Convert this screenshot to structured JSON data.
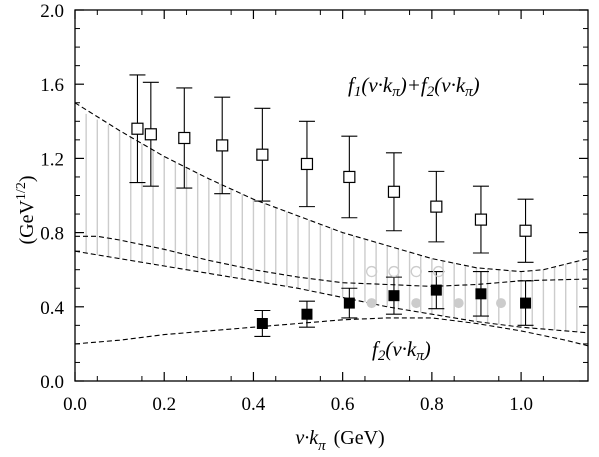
{
  "chart_data": {
    "type": "scatter",
    "xlabel": {
      "main": "v·k",
      "sub": "π",
      "unit": "(GeV)"
    },
    "ylabel": {
      "unit": "(GeV",
      "sup": "1/2",
      "close": ")"
    },
    "xlim": [
      0.0,
      1.15
    ],
    "ylim": [
      0.0,
      2.0
    ],
    "x_ticks": [
      "0.0",
      "0.2",
      "0.4",
      "0.6",
      "0.8",
      "1.0"
    ],
    "x_tick_values": [
      0.0,
      0.2,
      0.4,
      0.6,
      0.8,
      1.0
    ],
    "y_ticks": [
      "0.0",
      "0.4",
      "0.8",
      "1.2",
      "1.6",
      "2.0"
    ],
    "y_tick_values": [
      0.0,
      0.4,
      0.8,
      1.2,
      1.6,
      2.0
    ],
    "grid": false,
    "annotations": [
      {
        "text": "f1(v·kπ)+f2(v·kπ)",
        "near": "upper right"
      },
      {
        "text": "f2(v·kπ)",
        "near": "lower right"
      }
    ],
    "series": [
      {
        "marker": "open-square",
        "color": "#000000",
        "points": [
          {
            "x": 0.14,
            "y": 1.36,
            "err": 0.29
          },
          {
            "x": 0.17,
            "y": 1.33,
            "err": 0.28
          },
          {
            "x": 0.245,
            "y": 1.31,
            "err": 0.27
          },
          {
            "x": 0.33,
            "y": 1.27,
            "err": 0.26
          },
          {
            "x": 0.42,
            "y": 1.22,
            "err": 0.25
          },
          {
            "x": 0.52,
            "y": 1.17,
            "err": 0.23
          },
          {
            "x": 0.615,
            "y": 1.1,
            "err": 0.22
          },
          {
            "x": 0.715,
            "y": 1.02,
            "err": 0.21
          },
          {
            "x": 0.81,
            "y": 0.94,
            "err": 0.19
          },
          {
            "x": 0.91,
            "y": 0.87,
            "err": 0.18
          },
          {
            "x": 1.01,
            "y": 0.81,
            "err": 0.17
          }
        ]
      },
      {
        "marker": "filled-square",
        "color": "#000000",
        "points": [
          {
            "x": 0.42,
            "y": 0.31,
            "err": 0.07
          },
          {
            "x": 0.52,
            "y": 0.36,
            "err": 0.07
          },
          {
            "x": 0.615,
            "y": 0.42,
            "err": 0.08
          },
          {
            "x": 0.715,
            "y": 0.46,
            "err": 0.1
          },
          {
            "x": 0.81,
            "y": 0.49,
            "err": 0.1
          },
          {
            "x": 0.91,
            "y": 0.47,
            "err": 0.12
          },
          {
            "x": 1.01,
            "y": 0.42,
            "err": 0.12
          }
        ]
      },
      {
        "marker": "open-circle",
        "color": "#cccccc",
        "points": [
          {
            "x": 0.665,
            "y": 0.59
          },
          {
            "x": 0.715,
            "y": 0.59
          },
          {
            "x": 0.765,
            "y": 0.59
          },
          {
            "x": 0.815,
            "y": 0.59
          }
        ]
      },
      {
        "marker": "filled-circle",
        "color": "#cccccc",
        "points": [
          {
            "x": 0.665,
            "y": 0.42
          },
          {
            "x": 0.765,
            "y": 0.42
          },
          {
            "x": 0.86,
            "y": 0.42
          },
          {
            "x": 0.955,
            "y": 0.42
          }
        ]
      }
    ],
    "bands": [
      {
        "color": "#cccccc",
        "style": "vertical-hatch",
        "x_start": 0.0,
        "x_end": 1.14,
        "hatch_step": 0.025,
        "upper_curve": [
          [
            0.0,
            1.47
          ],
          [
            0.1,
            1.35
          ],
          [
            0.2,
            1.21
          ],
          [
            0.3,
            1.09
          ],
          [
            0.4,
            0.98
          ],
          [
            0.5,
            0.89
          ],
          [
            0.6,
            0.8
          ],
          [
            0.7,
            0.73
          ],
          [
            0.8,
            0.66
          ],
          [
            0.9,
            0.61
          ],
          [
            1.0,
            0.59
          ],
          [
            1.05,
            0.6
          ],
          [
            1.15,
            0.66
          ]
        ],
        "lower_curve": [
          [
            0.0,
            0.7
          ],
          [
            0.1,
            0.66
          ],
          [
            0.2,
            0.62
          ],
          [
            0.3,
            0.58
          ],
          [
            0.4,
            0.54
          ],
          [
            0.5,
            0.5
          ],
          [
            0.6,
            0.45
          ],
          [
            0.7,
            0.4
          ],
          [
            0.8,
            0.36
          ],
          [
            0.9,
            0.32
          ],
          [
            1.0,
            0.29
          ],
          [
            1.1,
            0.27
          ],
          [
            1.15,
            0.26
          ]
        ]
      }
    ],
    "curves": [
      {
        "style": "dashed",
        "points": [
          [
            0.0,
            1.5
          ],
          [
            0.1,
            1.35
          ],
          [
            0.2,
            1.21
          ],
          [
            0.3,
            1.09
          ],
          [
            0.4,
            0.98
          ],
          [
            0.5,
            0.89
          ],
          [
            0.6,
            0.8
          ],
          [
            0.7,
            0.73
          ],
          [
            0.8,
            0.66
          ],
          [
            0.9,
            0.61
          ],
          [
            1.0,
            0.59
          ],
          [
            1.05,
            0.6
          ],
          [
            1.15,
            0.66
          ]
        ]
      },
      {
        "style": "dashed",
        "points": [
          [
            0.0,
            0.78
          ],
          [
            0.05,
            0.78
          ],
          [
            0.1,
            0.76
          ],
          [
            0.2,
            0.71
          ],
          [
            0.3,
            0.65
          ],
          [
            0.4,
            0.6
          ],
          [
            0.5,
            0.56
          ],
          [
            0.6,
            0.53
          ],
          [
            0.7,
            0.52
          ],
          [
            0.8,
            0.51
          ],
          [
            0.9,
            0.52
          ],
          [
            1.0,
            0.54
          ],
          [
            1.15,
            0.55
          ]
        ]
      },
      {
        "style": "dashed",
        "points": [
          [
            0.0,
            0.7
          ],
          [
            0.1,
            0.66
          ],
          [
            0.2,
            0.62
          ],
          [
            0.3,
            0.58
          ],
          [
            0.4,
            0.54
          ],
          [
            0.5,
            0.5
          ],
          [
            0.6,
            0.45
          ],
          [
            0.7,
            0.4
          ],
          [
            0.8,
            0.36
          ],
          [
            0.9,
            0.32
          ],
          [
            1.0,
            0.29
          ],
          [
            1.1,
            0.27
          ],
          [
            1.15,
            0.26
          ]
        ]
      },
      {
        "style": "dashed",
        "points": [
          [
            0.0,
            0.2
          ],
          [
            0.1,
            0.22
          ],
          [
            0.2,
            0.25
          ],
          [
            0.3,
            0.27
          ],
          [
            0.4,
            0.29
          ],
          [
            0.5,
            0.31
          ],
          [
            0.6,
            0.33
          ],
          [
            0.7,
            0.34
          ],
          [
            0.8,
            0.34
          ],
          [
            0.9,
            0.31
          ],
          [
            1.0,
            0.27
          ],
          [
            1.1,
            0.22
          ],
          [
            1.15,
            0.19
          ]
        ]
      }
    ]
  }
}
